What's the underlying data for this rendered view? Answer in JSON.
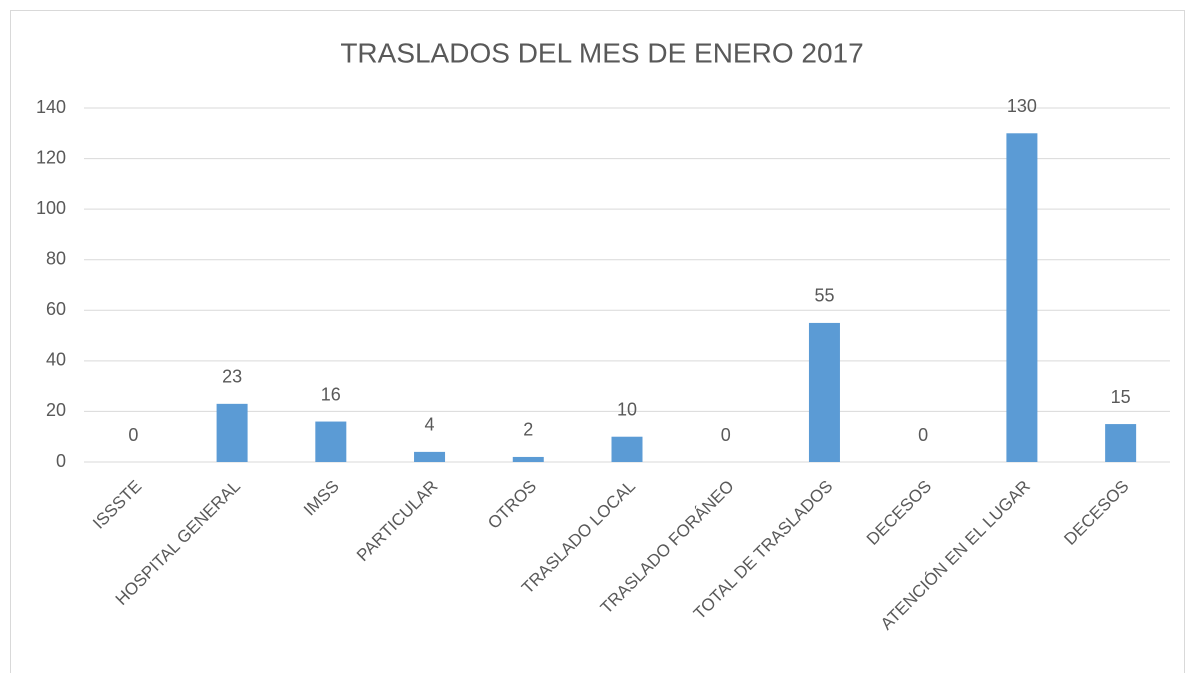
{
  "chart_data": {
    "type": "bar",
    "title": "TRASLADOS DEL MES DE ENERO 2017",
    "categories": [
      "ISSSTE",
      "HOSPITAL GENERAL",
      "IMSS",
      "PARTICULAR",
      "OTROS",
      "TRASLADO LOCAL",
      "TRASLADO FORÁNEO",
      "TOTAL DE TRASLADOS",
      "DECESOS",
      "ATENCIÓN EN EL LUGAR",
      "DECESOS"
    ],
    "values": [
      0,
      23,
      16,
      4,
      2,
      10,
      0,
      55,
      0,
      130,
      15
    ],
    "color": "#5b9bd5",
    "ylim": [
      0,
      140
    ],
    "yticks": [
      0,
      20,
      40,
      60,
      80,
      100,
      120,
      140
    ],
    "grid": true
  }
}
